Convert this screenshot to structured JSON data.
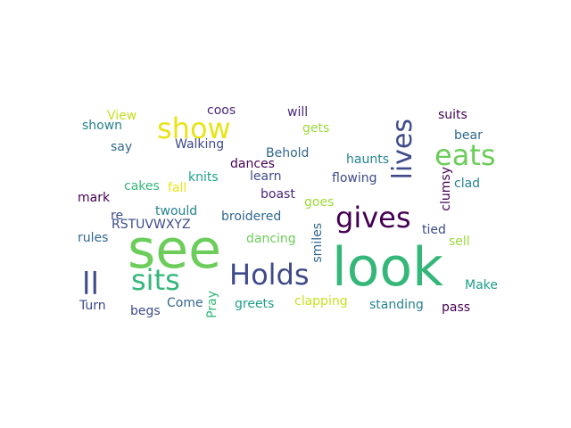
{
  "words": [
    {
      "id": "look",
      "text": "look",
      "color": "#35b779"
    },
    {
      "id": "see",
      "text": "see",
      "color": "#6ccd5a"
    },
    {
      "id": "gives",
      "text": "gives",
      "color": "#440154"
    },
    {
      "id": "holds",
      "text": "Holds",
      "color": "#3e4a89"
    },
    {
      "id": "sits",
      "text": "sits",
      "color": "#35b779"
    },
    {
      "id": "show",
      "text": "show",
      "color": "#e8e419"
    },
    {
      "id": "eats",
      "text": "eats",
      "color": "#6ccd5a"
    },
    {
      "id": "lives",
      "text": "lives",
      "color": "#3e4a89"
    },
    {
      "id": "ll",
      "text": "ll",
      "color": "#3e4a89"
    },
    {
      "id": "coos",
      "text": "coos",
      "color": "#482878"
    },
    {
      "id": "will",
      "text": "will",
      "color": "#482878"
    },
    {
      "id": "suits",
      "text": "suits",
      "color": "#440154"
    },
    {
      "id": "view",
      "text": "View",
      "color": "#c8e020"
    },
    {
      "id": "shown",
      "text": "shown",
      "color": "#26828e"
    },
    {
      "id": "gets1",
      "text": "gets",
      "color": "#9dd93b"
    },
    {
      "id": "bear",
      "text": "bear",
      "color": "#31688e"
    },
    {
      "id": "say",
      "text": "say",
      "color": "#31688e"
    },
    {
      "id": "walking",
      "text": "Walking",
      "color": "#3e4a89"
    },
    {
      "id": "behold",
      "text": "Behold",
      "color": "#31688e"
    },
    {
      "id": "haunts",
      "text": "haunts",
      "color": "#26828e"
    },
    {
      "id": "dances",
      "text": "dances",
      "color": "#440154"
    },
    {
      "id": "knits",
      "text": "knits",
      "color": "#1f9e89"
    },
    {
      "id": "learn",
      "text": "learn",
      "color": "#3e4a89"
    },
    {
      "id": "flowing",
      "text": "flowing",
      "color": "#3e4a89"
    },
    {
      "id": "clumsy",
      "text": "clumsy",
      "color": "#440154"
    },
    {
      "id": "clad",
      "text": "clad",
      "color": "#26828e"
    },
    {
      "id": "cakes",
      "text": "cakes",
      "color": "#35b779"
    },
    {
      "id": "fall",
      "text": "fall",
      "color": "#e8e419"
    },
    {
      "id": "boast",
      "text": "boast",
      "color": "#482878"
    },
    {
      "id": "mark",
      "text": "mark",
      "color": "#440154"
    },
    {
      "id": "goes",
      "text": "goes",
      "color": "#9dd93b"
    },
    {
      "id": "re",
      "text": "re",
      "color": "#3e4a89"
    },
    {
      "id": "twould",
      "text": "twould",
      "color": "#26828e"
    },
    {
      "id": "broidered",
      "text": "broidered",
      "color": "#31688e"
    },
    {
      "id": "rstuvwxyz",
      "text": "RSTUVWXYZ",
      "color": "#3e4a89"
    },
    {
      "id": "tied",
      "text": "tied",
      "color": "#3e4a89"
    },
    {
      "id": "rules",
      "text": "rules",
      "color": "#31688e"
    },
    {
      "id": "dancing",
      "text": "dancing",
      "color": "#6ccd5a"
    },
    {
      "id": "smiles",
      "text": "smiles",
      "color": "#31688e"
    },
    {
      "id": "sell",
      "text": "sell",
      "color": "#9dd93b"
    },
    {
      "id": "make",
      "text": "Make",
      "color": "#1f9e89"
    },
    {
      "id": "turn",
      "text": "Turn",
      "color": "#3e4a89"
    },
    {
      "id": "come",
      "text": "Come",
      "color": "#31688e"
    },
    {
      "id": "greets",
      "text": "greets",
      "color": "#1f9e89"
    },
    {
      "id": "clapping",
      "text": "clapping",
      "color": "#c8e020"
    },
    {
      "id": "standing",
      "text": "standing",
      "color": "#26828e"
    },
    {
      "id": "pass",
      "text": "pass",
      "color": "#440154"
    },
    {
      "id": "begs",
      "text": "begs",
      "color": "#3e4a89"
    },
    {
      "id": "pray",
      "text": "Pray",
      "color": "#35b779"
    }
  ]
}
